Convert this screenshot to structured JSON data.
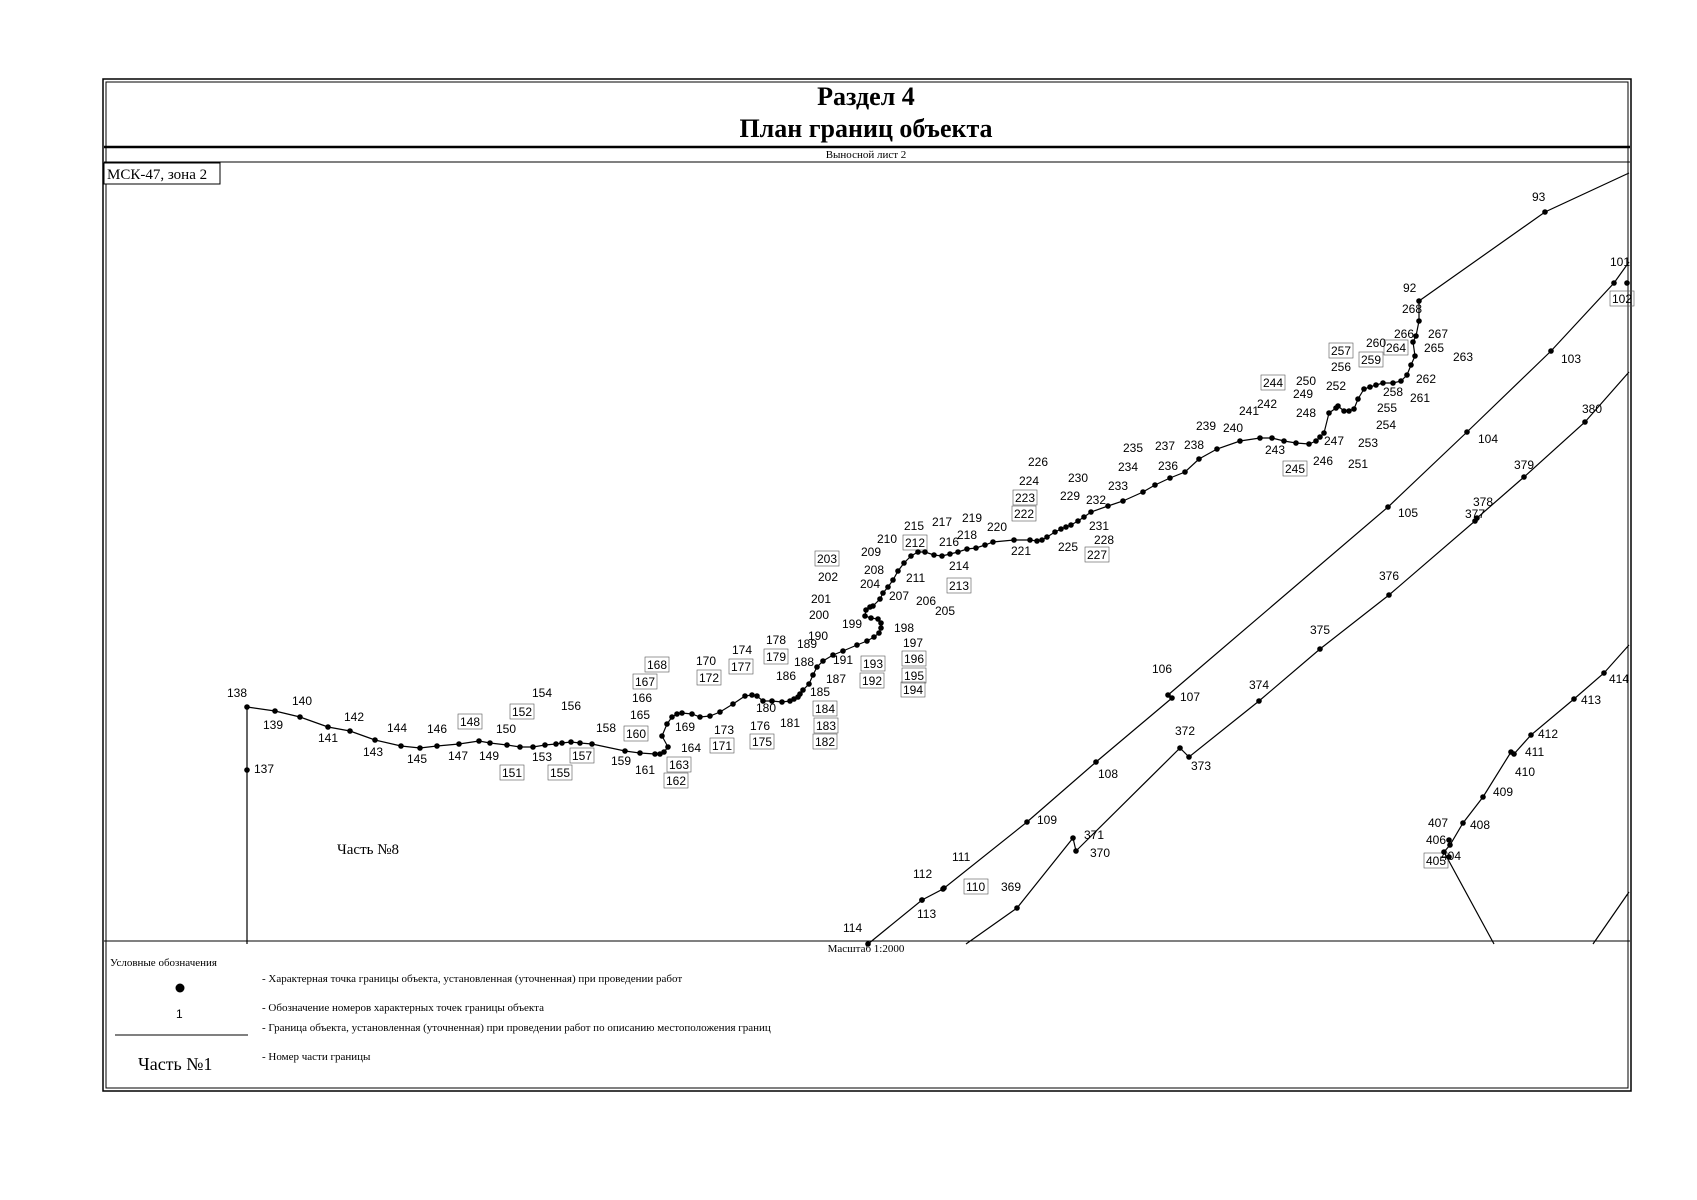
{
  "header": {
    "section": "Раздел 4",
    "title": "План границ объекта",
    "sheet": "Выносной лист 2"
  },
  "crs": "МСК-47, зона 2",
  "scale": "Масштаб 1:2000",
  "part_label": "Часть №8",
  "legend": {
    "title": "Условные обозначения",
    "sample_number": "1",
    "sample_part": "Часть №1",
    "items": [
      "- Характерная точка границы объекта, установленная (уточненная) при проведении работ",
      "- Обозначение номеров характерных точек границы объекта",
      "- Граница объекта, установленная (уточненная) при проведении работ по описанию местоположения границ",
      "- Номер части границы"
    ]
  },
  "points": [
    {
      "n": "92"
    },
    {
      "n": "93"
    },
    {
      "n": "101"
    },
    {
      "n": "102"
    },
    {
      "n": "103"
    },
    {
      "n": "104"
    },
    {
      "n": "105"
    },
    {
      "n": "106"
    },
    {
      "n": "107"
    },
    {
      "n": "108"
    },
    {
      "n": "109"
    },
    {
      "n": "110"
    },
    {
      "n": "111"
    },
    {
      "n": "112"
    },
    {
      "n": "113"
    },
    {
      "n": "114"
    },
    {
      "n": "137"
    },
    {
      "n": "138"
    },
    {
      "n": "139"
    },
    {
      "n": "140"
    },
    {
      "n": "141"
    },
    {
      "n": "142"
    },
    {
      "n": "143"
    },
    {
      "n": "144"
    },
    {
      "n": "145"
    },
    {
      "n": "146"
    },
    {
      "n": "147"
    },
    {
      "n": "148"
    },
    {
      "n": "149"
    },
    {
      "n": "150"
    },
    {
      "n": "151"
    },
    {
      "n": "152"
    },
    {
      "n": "153"
    },
    {
      "n": "154"
    },
    {
      "n": "155"
    },
    {
      "n": "156"
    },
    {
      "n": "157"
    },
    {
      "n": "158"
    },
    {
      "n": "159"
    },
    {
      "n": "160"
    },
    {
      "n": "161"
    },
    {
      "n": "162"
    },
    {
      "n": "163"
    },
    {
      "n": "164"
    },
    {
      "n": "165"
    },
    {
      "n": "166"
    },
    {
      "n": "167"
    },
    {
      "n": "168"
    },
    {
      "n": "169"
    },
    {
      "n": "170"
    },
    {
      "n": "171"
    },
    {
      "n": "172"
    },
    {
      "n": "173"
    },
    {
      "n": "174"
    },
    {
      "n": "175"
    },
    {
      "n": "176"
    },
    {
      "n": "177"
    },
    {
      "n": "178"
    },
    {
      "n": "179"
    },
    {
      "n": "180"
    },
    {
      "n": "181"
    },
    {
      "n": "182"
    },
    {
      "n": "183"
    },
    {
      "n": "184"
    },
    {
      "n": "185"
    },
    {
      "n": "186"
    },
    {
      "n": "187"
    },
    {
      "n": "188"
    },
    {
      "n": "189"
    },
    {
      "n": "190"
    },
    {
      "n": "191"
    },
    {
      "n": "192"
    },
    {
      "n": "193"
    },
    {
      "n": "194"
    },
    {
      "n": "195"
    },
    {
      "n": "196"
    },
    {
      "n": "197"
    },
    {
      "n": "198"
    },
    {
      "n": "199"
    },
    {
      "n": "200"
    },
    {
      "n": "201"
    },
    {
      "n": "202"
    },
    {
      "n": "203"
    },
    {
      "n": "204"
    },
    {
      "n": "205"
    },
    {
      "n": "206"
    },
    {
      "n": "207"
    },
    {
      "n": "208"
    },
    {
      "n": "209"
    },
    {
      "n": "210"
    },
    {
      "n": "211"
    },
    {
      "n": "212"
    },
    {
      "n": "213"
    },
    {
      "n": "214"
    },
    {
      "n": "215"
    },
    {
      "n": "216"
    },
    {
      "n": "217"
    },
    {
      "n": "218"
    },
    {
      "n": "219"
    },
    {
      "n": "220"
    },
    {
      "n": "221"
    },
    {
      "n": "222"
    },
    {
      "n": "223"
    },
    {
      "n": "224"
    },
    {
      "n": "225"
    },
    {
      "n": "226"
    },
    {
      "n": "227"
    },
    {
      "n": "228"
    },
    {
      "n": "229"
    },
    {
      "n": "230"
    },
    {
      "n": "231"
    },
    {
      "n": "232"
    },
    {
      "n": "233"
    },
    {
      "n": "234"
    },
    {
      "n": "235"
    },
    {
      "n": "236"
    },
    {
      "n": "237"
    },
    {
      "n": "238"
    },
    {
      "n": "239"
    },
    {
      "n": "240"
    },
    {
      "n": "241"
    },
    {
      "n": "242"
    },
    {
      "n": "243"
    },
    {
      "n": "244"
    },
    {
      "n": "245"
    },
    {
      "n": "246"
    },
    {
      "n": "247"
    },
    {
      "n": "248"
    },
    {
      "n": "249"
    },
    {
      "n": "250"
    },
    {
      "n": "251"
    },
    {
      "n": "252"
    },
    {
      "n": "253"
    },
    {
      "n": "254"
    },
    {
      "n": "255"
    },
    {
      "n": "256"
    },
    {
      "n": "257"
    },
    {
      "n": "258"
    },
    {
      "n": "259"
    },
    {
      "n": "260"
    },
    {
      "n": "261"
    },
    {
      "n": "262"
    },
    {
      "n": "263"
    },
    {
      "n": "264"
    },
    {
      "n": "265"
    },
    {
      "n": "266"
    },
    {
      "n": "267"
    },
    {
      "n": "268"
    },
    {
      "n": "369"
    },
    {
      "n": "370"
    },
    {
      "n": "371"
    },
    {
      "n": "372"
    },
    {
      "n": "373"
    },
    {
      "n": "374"
    },
    {
      "n": "375"
    },
    {
      "n": "376"
    },
    {
      "n": "377"
    },
    {
      "n": "378"
    },
    {
      "n": "379"
    },
    {
      "n": "380"
    },
    {
      "n": "404"
    },
    {
      "n": "405"
    },
    {
      "n": "406"
    },
    {
      "n": "407"
    },
    {
      "n": "408"
    },
    {
      "n": "409"
    },
    {
      "n": "410"
    },
    {
      "n": "411"
    },
    {
      "n": "412"
    },
    {
      "n": "413"
    },
    {
      "n": "414"
    }
  ]
}
